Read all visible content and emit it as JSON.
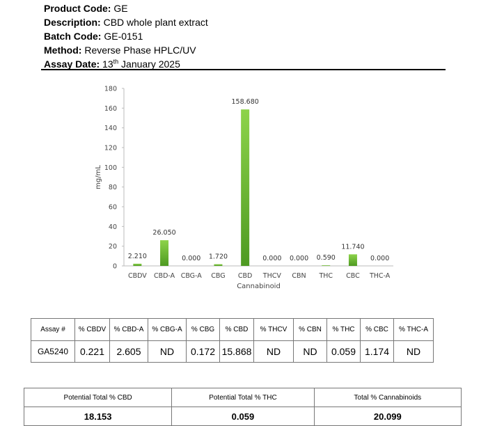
{
  "header": {
    "product_code_label": "Product Code:",
    "product_code": "GE",
    "description_label": "Description:",
    "description": "CBD whole plant extract",
    "batch_code_label": "Batch Code:",
    "batch_code": "GE-0151",
    "method_label": "Method:",
    "method": "Reverse Phase HPLC/UV",
    "assay_date_label": "Assay Date:",
    "assay_date_day": "13",
    "assay_date_suffix": "th",
    "assay_date_rest": "January 2025"
  },
  "chart_data": {
    "type": "bar",
    "categories": [
      "CBDV",
      "CBD-A",
      "CBG-A",
      "CBG",
      "CBD",
      "THCV",
      "CBN",
      "THC",
      "CBC",
      "THC-A"
    ],
    "values": [
      2.21,
      26.05,
      0.0,
      1.72,
      158.68,
      0.0,
      0.0,
      0.59,
      11.74,
      0.0
    ],
    "data_labels": [
      "2.210",
      "26.050",
      "0.000",
      "1.720",
      "158.680",
      "0.000",
      "0.000",
      "0.590",
      "11.740",
      "0.000"
    ],
    "yticks": [
      "0",
      "20",
      "40",
      "60",
      "80",
      "100",
      "120",
      "140",
      "160",
      "180"
    ],
    "ylim": [
      0,
      180
    ],
    "xlabel": "Cannabinoid",
    "ylabel": "mg/mL",
    "grid": false,
    "bar_color_top": "#8dd34a",
    "bar_color_bottom": "#4e9a22"
  },
  "assay_table": {
    "headers": [
      "Assay #",
      "% CBDV",
      "% CBD-A",
      "% CBG-A",
      "% CBG",
      "% CBD",
      "% THCV",
      "% CBN",
      "% THC",
      "% CBC",
      "% THC-A"
    ],
    "row": [
      "GA5240",
      "0.221",
      "2.605",
      "ND",
      "0.172",
      "15.868",
      "ND",
      "ND",
      "0.059",
      "1.174",
      "ND"
    ]
  },
  "totals_table": {
    "headers": [
      "Potential Total % CBD",
      "Potential Total % THC",
      "Total % Cannabinoids"
    ],
    "values": [
      "18.153",
      "0.059",
      "20.099"
    ]
  }
}
